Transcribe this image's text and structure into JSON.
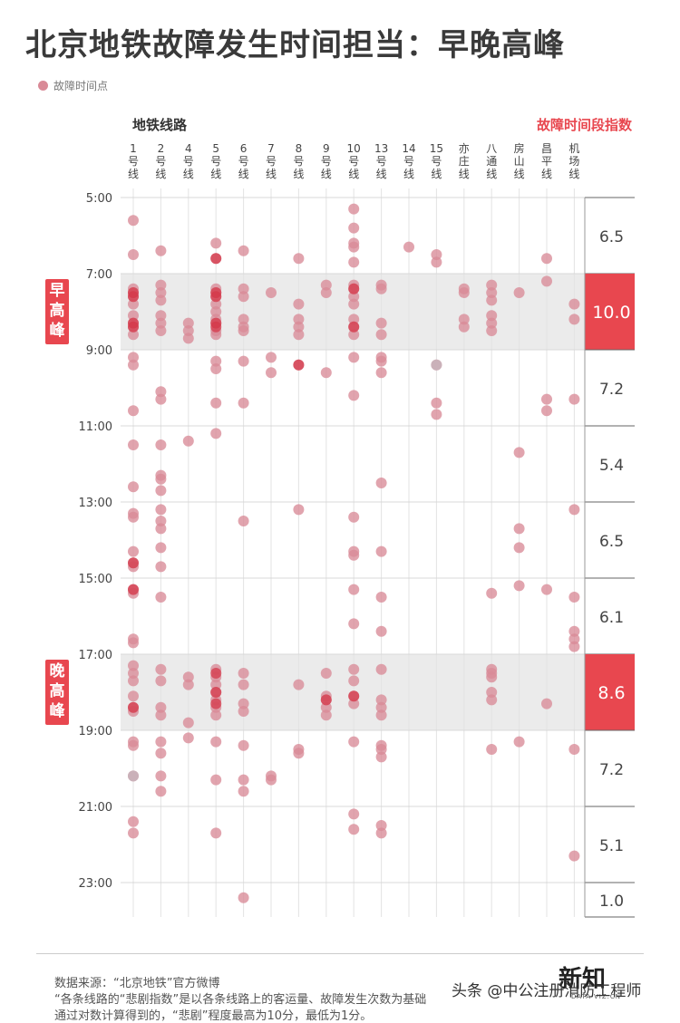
{
  "title": "北京地铁故障发生时间担当：早晚高峰",
  "legend_label": "故障时间点",
  "lines_header": "地铁线路",
  "index_header": "故障时间段指数",
  "colors": {
    "accent": "#e8474f",
    "dot": "#d98a97",
    "dot_dark": "#d4384a",
    "band": "#ebebeb",
    "dot_gray": "#c8b2ba"
  },
  "footer": {
    "source": "数据来源：“北京地铁”官方微博",
    "note1": "“各条线路的“悲剧指数”是以各条线路上的客运量、故障发生次数为基础",
    "note2": "通过对数计算得到的，“悲剧”程度最高为10分，最低为1分。"
  },
  "watermark": "头条 @中公注册消防工程师",
  "logo": "新知",
  "logo_url": "DATA-VIZ.CN",
  "chart_data": {
    "type": "scatter",
    "title": "北京地铁故障发生时间担当：早晚高峰",
    "xlabel": "地铁线路",
    "ylabel": "",
    "lines": [
      "1号线",
      "2号线",
      "4号线",
      "5号线",
      "6号线",
      "7号线",
      "8号线",
      "9号线",
      "10号线",
      "13号线",
      "14号线",
      "15号线",
      "亦庄线",
      "八通线",
      "房山线",
      "昌平线",
      "机场线"
    ],
    "y_ticks": [
      "5:00",
      "7:00",
      "9:00",
      "11:00",
      "13:00",
      "15:00",
      "17:00",
      "19:00",
      "21:00",
      "23:00"
    ],
    "ylim": [
      5,
      24
    ],
    "peak_bands": [
      {
        "label": "早高峰",
        "from": 7,
        "to": 9
      },
      {
        "label": "晚高峰",
        "from": 17,
        "to": 19
      }
    ],
    "index_segments": [
      {
        "from": 5,
        "to": 7,
        "value": "6.5",
        "highlight": false
      },
      {
        "from": 7,
        "to": 9,
        "value": "10.0",
        "highlight": true
      },
      {
        "from": 9,
        "to": 11,
        "value": "7.2",
        "highlight": false
      },
      {
        "from": 11,
        "to": 13,
        "value": "5.4",
        "highlight": false
      },
      {
        "from": 13,
        "to": 15,
        "value": "6.5",
        "highlight": false
      },
      {
        "from": 15,
        "to": 17,
        "value": "6.1",
        "highlight": false
      },
      {
        "from": 17,
        "to": 19,
        "value": "8.6",
        "highlight": true
      },
      {
        "from": 19,
        "to": 21,
        "value": "7.2",
        "highlight": false
      },
      {
        "from": 21,
        "to": 23,
        "value": "5.1",
        "highlight": false
      },
      {
        "from": 23,
        "to": 24,
        "value": "1.0",
        "highlight": false
      }
    ],
    "series": [
      {
        "line": "1号线",
        "times": [
          5.6,
          6.5,
          7.4,
          7.5,
          7.6,
          7.8,
          8.1,
          8.3,
          8.4,
          8.6,
          9.2,
          9.4,
          10.6,
          11.5,
          12.6,
          13.3,
          13.4,
          14.3,
          14.6,
          14.7,
          15.3,
          15.4,
          16.6,
          16.7,
          17.3,
          17.5,
          17.7,
          18.1,
          18.4,
          18.5,
          19.3,
          19.4,
          20.2,
          21.4,
          21.7
        ]
      },
      {
        "line": "2号线",
        "times": [
          6.4,
          7.3,
          7.5,
          7.7,
          8.1,
          8.3,
          8.5,
          10.1,
          10.3,
          11.5,
          12.3,
          12.4,
          12.7,
          13.2,
          13.5,
          13.7,
          14.2,
          14.7,
          15.5,
          17.4,
          17.7,
          18.4,
          18.6,
          19.3,
          19.6,
          20.2,
          20.6
        ]
      },
      {
        "line": "4号线",
        "times": [
          8.3,
          8.5,
          8.7,
          11.4,
          17.6,
          17.8,
          18.8,
          19.2
        ]
      },
      {
        "line": "5号线",
        "times": [
          6.2,
          6.6,
          7.4,
          7.5,
          7.6,
          7.8,
          8.0,
          8.2,
          8.3,
          8.5,
          8.6,
          9.3,
          9.5,
          10.4,
          11.2,
          17.4,
          17.6,
          17.8,
          18.0,
          18.2,
          18.4,
          18.6,
          19.3,
          20.3,
          21.7
        ]
      },
      {
        "line": "6号线",
        "times": [
          6.4,
          7.4,
          7.6,
          8.2,
          8.4,
          8.5,
          9.3,
          10.4,
          13.5,
          17.5,
          17.8,
          18.3,
          18.5,
          19.4,
          20.3,
          20.6,
          23.4
        ]
      },
      {
        "line": "7号线",
        "times": [
          7.5,
          9.2,
          9.6,
          20.2,
          20.3
        ]
      },
      {
        "line": "8号线",
        "times": [
          6.6,
          7.8,
          8.2,
          8.4,
          8.6,
          9.4,
          13.2,
          17.8,
          19.5,
          19.6
        ]
      },
      {
        "line": "9号线",
        "times": [
          7.3,
          7.5,
          9.6,
          17.5,
          18.1,
          18.2,
          18.4,
          18.6
        ]
      },
      {
        "line": "10号线",
        "times": [
          5.3,
          5.8,
          6.2,
          6.3,
          6.7,
          7.3,
          7.4,
          7.6,
          7.8,
          8.2,
          8.4,
          8.6,
          9.2,
          10.2,
          13.4,
          14.3,
          14.4,
          15.3,
          16.2,
          17.4,
          17.7,
          18.1,
          18.3,
          19.3,
          21.2,
          21.6
        ]
      },
      {
        "line": "13号线",
        "times": [
          7.3,
          7.4,
          8.3,
          8.6,
          9.2,
          9.3,
          9.6,
          12.5,
          14.3,
          15.5,
          16.4,
          17.4,
          18.2,
          18.4,
          18.6,
          19.4,
          19.5,
          19.7,
          21.5,
          21.7
        ]
      },
      {
        "line": "14号线",
        "times": [
          6.3
        ]
      },
      {
        "line": "15号线",
        "times": [
          6.5,
          6.7,
          9.4,
          10.4,
          10.7
        ]
      },
      {
        "line": "亦庄线",
        "times": [
          7.4,
          7.5,
          8.2,
          8.4
        ]
      },
      {
        "line": "八通线",
        "times": [
          7.3,
          7.5,
          7.7,
          8.1,
          8.3,
          8.5,
          15.4,
          17.4,
          17.5,
          17.6,
          18.0,
          18.2,
          19.5
        ]
      },
      {
        "line": "房山线",
        "times": [
          7.5,
          11.7,
          13.7,
          14.2,
          15.2,
          19.3
        ]
      },
      {
        "line": "昌平线",
        "times": [
          6.6,
          7.2,
          10.3,
          10.6,
          15.3,
          18.3
        ]
      },
      {
        "line": "机场线",
        "times": [
          7.8,
          8.2,
          10.3,
          13.2,
          15.5,
          16.4,
          16.6,
          16.8,
          19.5,
          22.3
        ]
      }
    ],
    "dark_points": [
      {
        "line": "1号线",
        "times": [
          7.5,
          7.6,
          8.3,
          8.4,
          14.6,
          15.3,
          18.4
        ]
      },
      {
        "line": "5号线",
        "times": [
          7.5,
          7.6,
          8.3,
          8.4,
          17.5,
          18.0,
          18.3
        ]
      },
      {
        "line": "10号线",
        "times": [
          7.4,
          8.4,
          18.1
        ]
      },
      {
        "line": "9号线",
        "times": [
          18.2
        ]
      },
      {
        "line": "8号线",
        "times": [
          9.4
        ]
      },
      {
        "line": "5号线",
        "times": [
          6.6
        ]
      }
    ],
    "gray_points": [
      {
        "line": "1号线",
        "times": [
          20.2
        ]
      },
      {
        "line": "15号线",
        "times": [
          9.4
        ]
      }
    ]
  }
}
